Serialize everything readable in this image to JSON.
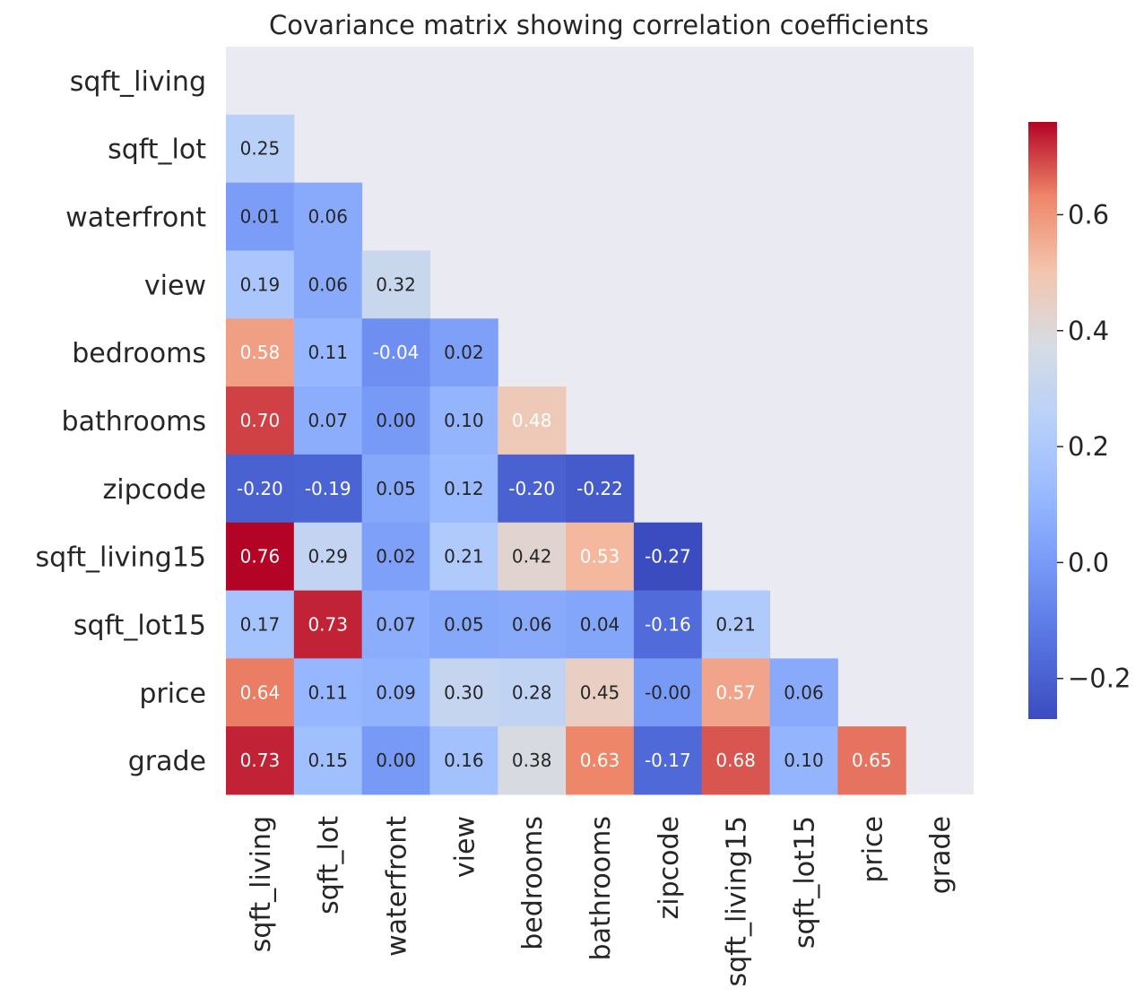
{
  "chart_data": {
    "type": "heatmap",
    "title": "Covariance matrix showing correlation coefficients",
    "variables": [
      "sqft_living",
      "sqft_lot",
      "waterfront",
      "view",
      "bedrooms",
      "bathrooms",
      "zipcode",
      "sqft_living15",
      "sqft_lot15",
      "price",
      "grade"
    ],
    "mask": "upper-triangle-including-diagonal",
    "colormap": "coolwarm",
    "background_color": "#eaeaf2",
    "vmin": -0.27,
    "vmax": 0.76,
    "colorbar_ticks": [
      -0.2,
      0.0,
      0.2,
      0.4,
      0.6
    ],
    "colorbar_tick_labels": [
      "−0.2",
      "0.0",
      "0.2",
      "0.4",
      "0.6"
    ],
    "rows": [
      [],
      [
        0.25
      ],
      [
        0.01,
        0.06
      ],
      [
        0.19,
        0.06,
        0.32
      ],
      [
        0.58,
        0.11,
        -0.04,
        0.02
      ],
      [
        0.7,
        0.07,
        0.0,
        0.1,
        0.48
      ],
      [
        -0.2,
        -0.19,
        0.05,
        0.12,
        -0.2,
        -0.22
      ],
      [
        0.76,
        0.29,
        0.02,
        0.21,
        0.42,
        0.53,
        -0.27
      ],
      [
        0.17,
        0.73,
        0.07,
        0.05,
        0.06,
        0.04,
        -0.16,
        0.21
      ],
      [
        0.64,
        0.11,
        0.09,
        0.3,
        0.28,
        0.45,
        -0.0,
        0.57,
        0.06
      ],
      [
        0.73,
        0.15,
        0.0,
        0.16,
        0.38,
        0.63,
        -0.17,
        0.68,
        0.1,
        0.65
      ]
    ],
    "cell_labels": [
      [],
      [
        "0.25"
      ],
      [
        "0.01",
        "0.06"
      ],
      [
        "0.19",
        "0.06",
        "0.32"
      ],
      [
        "0.58",
        "0.11",
        "-0.04",
        "0.02"
      ],
      [
        "0.70",
        "0.07",
        "0.00",
        "0.10",
        "0.48"
      ],
      [
        "-0.20",
        "-0.19",
        "0.05",
        "0.12",
        "-0.20",
        "-0.22"
      ],
      [
        "0.76",
        "0.29",
        "0.02",
        "0.21",
        "0.42",
        "0.53",
        "-0.27"
      ],
      [
        "0.17",
        "0.73",
        "0.07",
        "0.05",
        "0.06",
        "0.04",
        "-0.16",
        "0.21"
      ],
      [
        "0.64",
        "0.11",
        "0.09",
        "0.30",
        "0.28",
        "0.45",
        "-0.00",
        "0.57",
        "0.06"
      ],
      [
        "0.73",
        "0.15",
        "0.00",
        "0.16",
        "0.38",
        "0.63",
        "-0.17",
        "0.68",
        "0.10",
        "0.65"
      ]
    ]
  }
}
